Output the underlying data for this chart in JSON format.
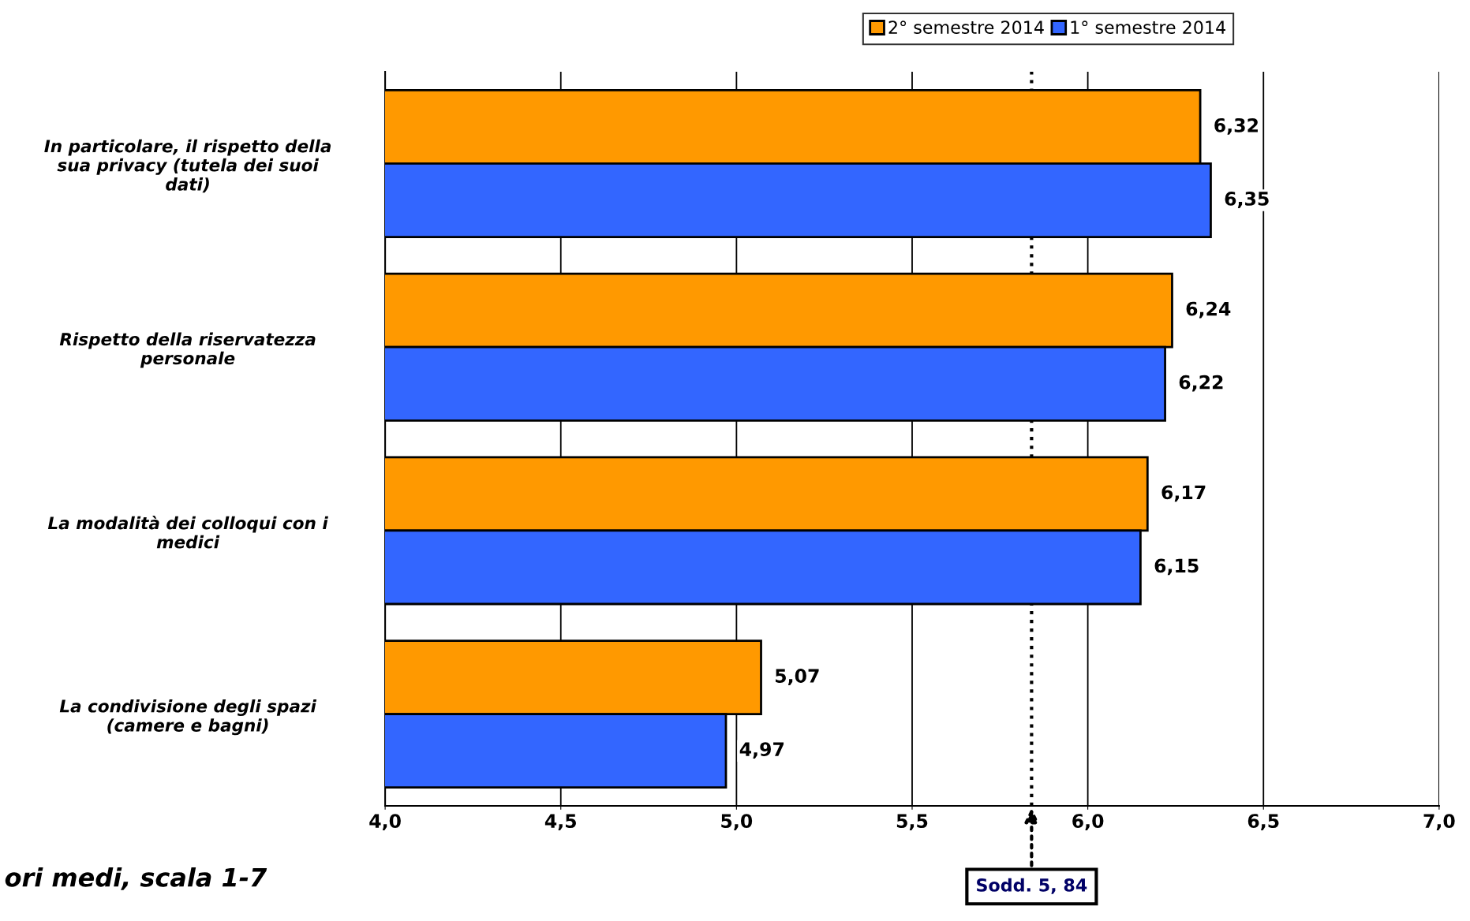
{
  "chart_data": {
    "type": "bar",
    "orientation": "horizontal",
    "categories": [
      "In particolare, il rispetto della\nsua privacy (tutela dei suoi\ndati)",
      "Rispetto della riservatezza\npersonale",
      "La modalità dei colloqui con i\nmedici",
      "La condivisione degli spazi\n(camere e bagni)"
    ],
    "series": [
      {
        "name": "2° semestre 2014",
        "color": "#ff9900",
        "values": [
          6.32,
          6.24,
          6.17,
          5.07
        ],
        "value_labels": [
          "6,32",
          "6,24",
          "6,17",
          "5,07"
        ]
      },
      {
        "name": "1° semestre 2014",
        "color": "#3366ff",
        "values": [
          6.35,
          6.22,
          6.15,
          4.97
        ],
        "value_labels": [
          "6,35",
          "6,22",
          "6,15",
          "4,97"
        ]
      }
    ],
    "xlim": [
      4.0,
      7.0
    ],
    "xticks": [
      {
        "value": 4.0,
        "label": "4,0"
      },
      {
        "value": 4.5,
        "label": "4,5"
      },
      {
        "value": 5.0,
        "label": "5,0"
      },
      {
        "value": 5.5,
        "label": "5,5"
      },
      {
        "value": 6.0,
        "label": "6,0"
      },
      {
        "value": 6.5,
        "label": "6,5"
      },
      {
        "value": 7.0,
        "label": "7,0"
      }
    ],
    "grid": "x",
    "legend": "top",
    "ref_lines": [
      {
        "axis": "x",
        "value": 5.84,
        "label": "Sodd. 5, 84",
        "line_style": "dotted"
      }
    ],
    "annotations": [
      "ori medi, scala 1-7"
    ]
  }
}
